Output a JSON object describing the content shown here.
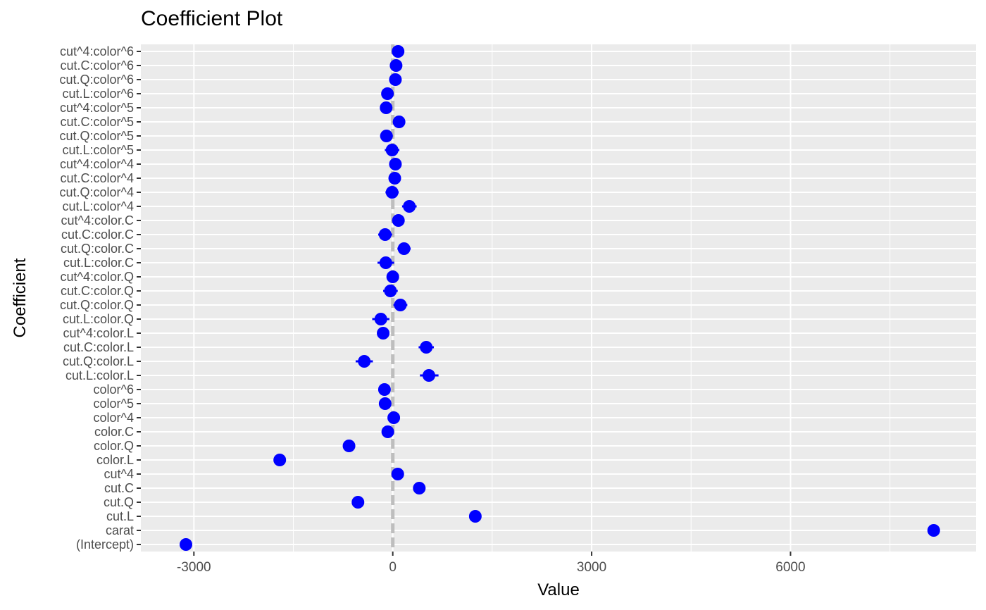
{
  "chart_data": {
    "type": "scatter",
    "title": "Coefficient Plot",
    "xlabel": "Value",
    "ylabel": "Coefficient",
    "xlim": [
      -3800,
      8800
    ],
    "x_ticks": [
      -3000,
      0,
      3000,
      6000
    ],
    "x_tick_labels": [
      "-3000",
      "0",
      "3000",
      "6000"
    ],
    "reference_line_x": 0,
    "point_color": "#0000ff",
    "reference_line_color": "#bebebe",
    "panel_background": "#ebebeb",
    "grid": true,
    "categories": [
      "(Intercept)",
      "carat",
      "cut.L",
      "cut.Q",
      "cut.C",
      "cut^4",
      "color.L",
      "color.Q",
      "color.C",
      "color^4",
      "color^5",
      "color^6",
      "cut.L:color.L",
      "cut.Q:color.L",
      "cut.C:color.L",
      "cut^4:color.L",
      "cut.L:color.Q",
      "cut.Q:color.Q",
      "cut.C:color.Q",
      "cut^4:color.Q",
      "cut.L:color.C",
      "cut.Q:color.C",
      "cut.C:color.C",
      "cut^4:color.C",
      "cut.L:color^4",
      "cut.Q:color^4",
      "cut.C:color^4",
      "cut^4:color^4",
      "cut.L:color^5",
      "cut.Q:color^5",
      "cut.C:color^5",
      "cut^4:color^5",
      "cut.L:color^6",
      "cut.Q:color^6",
      "cut.C:color^6",
      "cut^4:color^6"
    ],
    "values": [
      -3120,
      8160,
      1245,
      -525,
      400,
      75,
      -1705,
      -660,
      -75,
      15,
      -115,
      -125,
      545,
      -430,
      505,
      -145,
      -180,
      115,
      -35,
      0,
      -105,
      170,
      -115,
      85,
      250,
      -10,
      30,
      40,
      -10,
      -95,
      95,
      -100,
      -80,
      40,
      50,
      80
    ],
    "ci_low": [
      -3120,
      8160,
      1245,
      -525,
      400,
      75,
      -1705,
      -660,
      -75,
      15,
      -115,
      -125,
      410,
      -560,
      390,
      -145,
      -310,
      10,
      -145,
      0,
      -230,
      70,
      -220,
      85,
      140,
      -110,
      30,
      40,
      -120,
      -190,
      95,
      -100,
      -170,
      40,
      50,
      80
    ],
    "ci_high": [
      -3120,
      8160,
      1245,
      -525,
      400,
      75,
      -1705,
      -660,
      -75,
      15,
      -115,
      -125,
      690,
      -300,
      620,
      -145,
      -50,
      220,
      75,
      0,
      20,
      270,
      -10,
      85,
      360,
      90,
      30,
      40,
      100,
      0,
      95,
      -100,
      10,
      40,
      50,
      80
    ]
  }
}
